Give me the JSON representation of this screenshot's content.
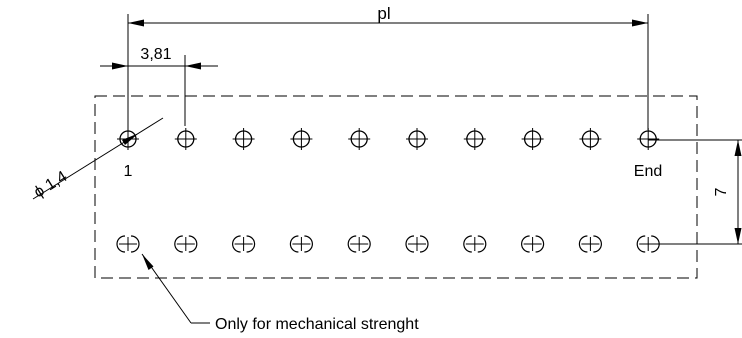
{
  "diagram": {
    "labels": {
      "pitch_total": "pl",
      "pitch": "3,81",
      "diameter": "ϕ 1,4",
      "first_pin": "1",
      "last_pin": "End",
      "row_spacing": "7",
      "note": "Only for mechanical strenght"
    },
    "upper_row_pin_count": 10,
    "lower_row_pin_count": 10
  }
}
